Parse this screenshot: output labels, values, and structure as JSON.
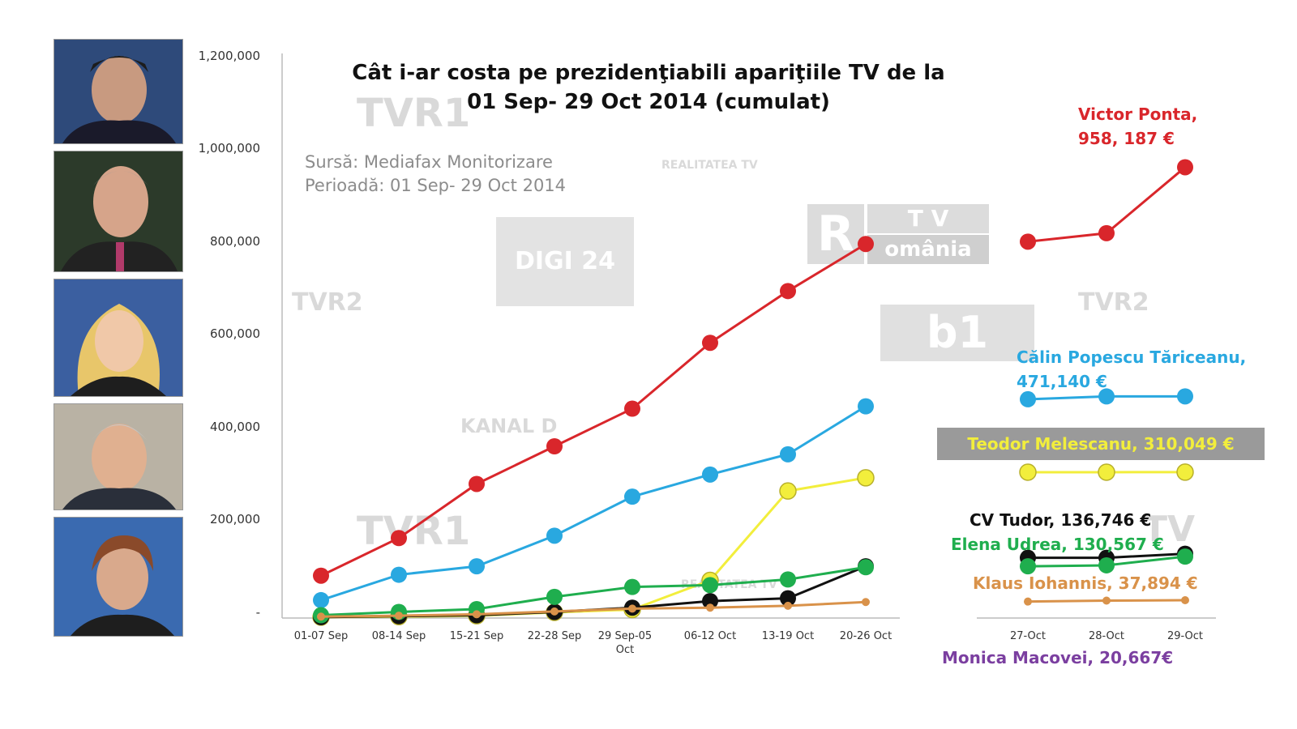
{
  "chart_data": {
    "type": "line",
    "title_line1": "Cât i-ar costa pe prezidenţiabili apariţiile TV  de la",
    "title_line2": "01 Sep- 29 Oct 2014 (cumulat)",
    "source": "Sursă: Mediafax Monitorizare",
    "period": "Perioadă: 01 Sep- 29 Oct 2014",
    "ylim": [
      0,
      1200000
    ],
    "yticks": [
      "1,200,000",
      "1,000,000",
      "800,000",
      "600,000",
      "400,000",
      "200,000",
      "-"
    ],
    "weekly_categories": [
      "01-07 Sep",
      "08-14 Sep",
      "15-21 Sep",
      "22-28 Sep",
      "29 Sep-05 Oct",
      "06-12 Oct",
      "13-19 Oct",
      "20-26 Oct"
    ],
    "daily_categories": [
      "27-Oct",
      "28-Oct",
      "29-Oct"
    ],
    "series": [
      {
        "name": "Victor Ponta",
        "color": "#d9262b",
        "weekly": [
          90000,
          170000,
          285000,
          365000,
          445000,
          585000,
          695000,
          795000
        ],
        "daily": [
          800000,
          818000,
          958187
        ]
      },
      {
        "name": "Călin Popescu Tăriceanu",
        "color": "#29a8e0",
        "weekly": [
          38000,
          92000,
          110000,
          175000,
          258000,
          305000,
          348000,
          450000
        ],
        "daily": [
          465000,
          471000,
          471140
        ]
      },
      {
        "name": "Teodor Melescanu",
        "color": "#f2ee3c",
        "weekly": [
          2000,
          3000,
          5000,
          12000,
          18000,
          80000,
          270000,
          298000
        ],
        "daily": [
          310000,
          310000,
          310049
        ]
      },
      {
        "name": "CV Tudor",
        "color": "#111111",
        "weekly": [
          2000,
          4000,
          6000,
          13000,
          22000,
          36000,
          42000,
          110000
        ],
        "daily": [
          128000,
          128000,
          136746
        ]
      },
      {
        "name": "Elena Udrea",
        "color": "#1fae4e",
        "weekly": [
          6000,
          13000,
          19000,
          45000,
          66000,
          70000,
          82000,
          108000
        ],
        "daily": [
          110000,
          112000,
          130567
        ]
      },
      {
        "name": "Klaus Iohannis",
        "color": "#d9924a",
        "weekly": [
          3000,
          5000,
          8000,
          14000,
          20000,
          22000,
          26000,
          34000
        ],
        "daily": [
          35000,
          37000,
          37894
        ]
      }
    ]
  },
  "labels": {
    "ponta_name": "Victor Ponta,",
    "ponta_value": "958, 187 €",
    "tariceanu_name": "Călin Popescu Tăriceanu,",
    "tariceanu_value": "471,140 €",
    "melescanu": "Teodor Melescanu, 310,049 €",
    "tudor": "CV Tudor, 136,746 €",
    "udrea": "Elena Udrea, 130,567 €",
    "iohannis": "Klaus Iohannis, 37,894 €",
    "macovei": "Monica Macovei, 20,667€"
  },
  "colors": {
    "ponta": "#d9262b",
    "tariceanu": "#29a8e0",
    "melescanu_text": "#f2ee3c",
    "melescanu_box": "#9a9a9a",
    "tudor": "#111111",
    "udrea": "#1fae4e",
    "iohannis": "#d9924a",
    "macovei": "#7b3fa0"
  },
  "watermarks": [
    "TVR1",
    "REALITATEA TV",
    "DIGI 24",
    "R",
    "T V",
    "omânia",
    "TVR2",
    "TVR2",
    "b1",
    "KANAL D",
    "TVR1",
    "REALITATEA TV",
    "TV"
  ]
}
